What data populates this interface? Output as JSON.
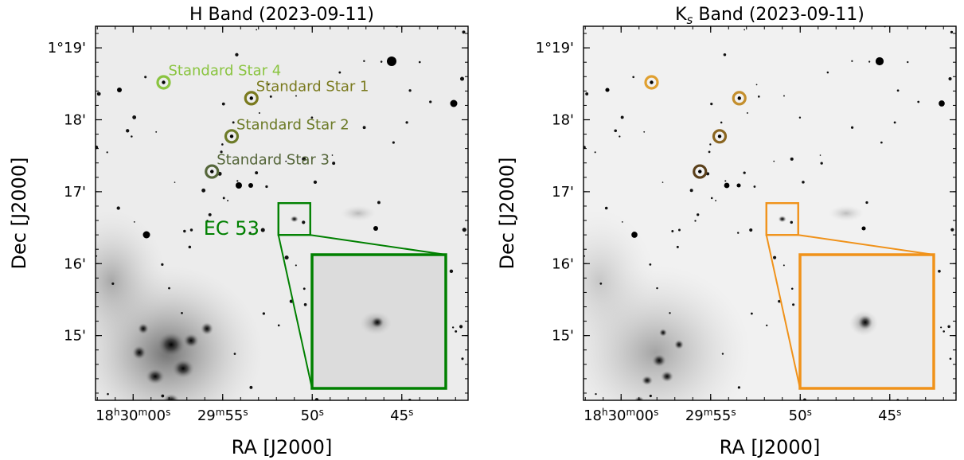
{
  "chart_data": [
    {
      "type": "image",
      "title": "H Band (2023-09-11)",
      "xlabel": "RA [J2000]",
      "ylabel": "Dec [J2000]",
      "x_ticks": [
        {
          "label": "18h30m00s",
          "ra_sec": 60
        },
        {
          "label": "29m55s",
          "ra_sec": 55
        },
        {
          "label": "50s",
          "ra_sec": 50
        },
        {
          "label": "45s",
          "ra_sec": 45
        }
      ],
      "y_ticks": [
        {
          "label": "1°19'",
          "dec_arcmin": 79
        },
        {
          "label": "18'",
          "dec_arcmin": 78
        },
        {
          "label": "17'",
          "dec_arcmin": 77
        },
        {
          "label": "16'",
          "dec_arcmin": 76
        },
        {
          "label": "15'",
          "dec_arcmin": 75
        }
      ],
      "xlim_ra_sec": [
        62.1,
        41.3
      ],
      "ylim_dec_arcmin": [
        74.1,
        79.3
      ],
      "target": {
        "label": "EC 53",
        "ra_sec": 51.0,
        "dec_arcmin": 76.62,
        "color": "#008000"
      },
      "annotations": [
        {
          "label": "Standard Star 4",
          "ra_sec": 58.3,
          "dec_arcmin": 78.52,
          "color": "#8ac440"
        },
        {
          "label": "Standard Star 1",
          "ra_sec": 53.4,
          "dec_arcmin": 78.3,
          "color": "#7a7a1e"
        },
        {
          "label": "Standard Star 2",
          "ra_sec": 54.5,
          "dec_arcmin": 77.77,
          "color": "#6d7b28"
        },
        {
          "label": "Standard Star 3",
          "ra_sec": 55.6,
          "dec_arcmin": 77.28,
          "color": "#55663a"
        }
      ]
    },
    {
      "type": "image",
      "title_main": "K",
      "title_sub": "s",
      "title_rest": " Band (2023-09-11)",
      "xlabel": "RA [J2000]",
      "ylabel": "Dec [J2000]",
      "x_ticks": [
        {
          "label": "18h30m00s",
          "ra_sec": 60
        },
        {
          "label": "29m55s",
          "ra_sec": 55
        },
        {
          "label": "50s",
          "ra_sec": 50
        },
        {
          "label": "45s",
          "ra_sec": 45
        }
      ],
      "y_ticks": [
        {
          "label": "1°19'",
          "dec_arcmin": 79
        },
        {
          "label": "18'",
          "dec_arcmin": 78
        },
        {
          "label": "17'",
          "dec_arcmin": 77
        },
        {
          "label": "16'",
          "dec_arcmin": 76
        },
        {
          "label": "15'",
          "dec_arcmin": 75
        }
      ],
      "xlim_ra_sec": [
        62.1,
        41.3
      ],
      "ylim_dec_arcmin": [
        74.1,
        79.3
      ],
      "target": {
        "ra_sec": 51.0,
        "dec_arcmin": 76.62,
        "color": "#f0921a"
      },
      "annotations": [
        {
          "ra_sec": 58.3,
          "dec_arcmin": 78.52,
          "color": "#e0a030"
        },
        {
          "ra_sec": 53.4,
          "dec_arcmin": 78.3,
          "color": "#c48f2e"
        },
        {
          "ra_sec": 54.5,
          "dec_arcmin": 77.77,
          "color": "#8a6520"
        },
        {
          "ra_sec": 55.6,
          "dec_arcmin": 77.28,
          "color": "#5a3f1a"
        }
      ]
    }
  ]
}
